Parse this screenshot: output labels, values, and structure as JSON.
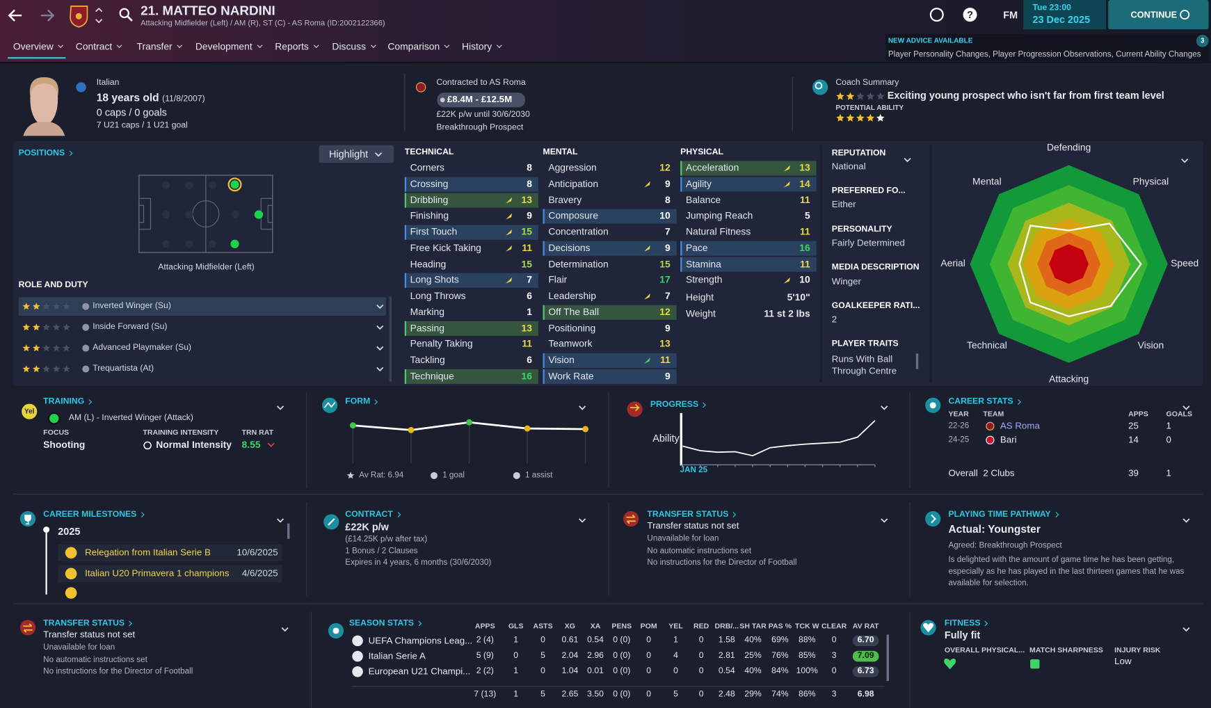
{
  "header": {
    "title": "21. MATTEO NARDINI",
    "subtitle": "Attacking Midfielder (Left) / AM (R), ST (C) - AS Roma (ID:2002122366)",
    "logo": "FM",
    "time": "Tue 23:00",
    "date": "23 Dec 2025",
    "continue": "CONTINUE",
    "advice_title": "NEW ADVICE AVAILABLE",
    "advice_text": "Player Personality Changes, Player Progression Observations, Current Ability Changes",
    "advice_count": 3
  },
  "nav": [
    "Overview",
    "Contract",
    "Transfer",
    "Development",
    "Reports",
    "Discuss",
    "Comparison",
    "History"
  ],
  "profile": {
    "nationality": "Italian",
    "age": "18 years old",
    "dob": "(11/8/2007)",
    "caps": "0 caps / 0 goals",
    "u21": "7 U21 caps / 1 U21 goal",
    "contract": "Contracted to AS Roma",
    "value": "£8.4M - £12.5M",
    "wage": "£22K p/w until 30/6/2030",
    "status": "Breakthrough Prospect",
    "coach_title": "Coach Summary",
    "coach_text": "Exciting young prospect who isn't far from first team level",
    "potential": "POTENTIAL ABILITY"
  },
  "positions": {
    "title": "POSITIONS",
    "highlight": "Highlight",
    "label": "Attacking Midfielder (Left)",
    "role_title": "ROLE AND DUTY",
    "roles": [
      "Inverted Winger (Su)",
      "Inside Forward (Su)",
      "Advanced Playmaker (Su)",
      "Trequartista (At)"
    ]
  },
  "attributes": [
    {
      "title": "TECHNICAL",
      "names": [
        "Corners",
        "Crossing",
        "Dribbling",
        "Finishing",
        "First Touch",
        "Free Kick Taking",
        "Heading",
        "Long Shots",
        "Long Throws",
        "Marking",
        "Passing",
        "Penalty Taking",
        "Tackling",
        "Technique"
      ],
      "values": [
        8,
        8,
        13,
        9,
        15,
        11,
        15,
        7,
        6,
        1,
        13,
        11,
        6,
        16
      ]
    },
    {
      "title": "MENTAL",
      "names": [
        "Aggression",
        "Anticipation",
        "Bravery",
        "Composure",
        "Concentration",
        "Decisions",
        "Determination",
        "Flair",
        "Leadership",
        "Off The Ball",
        "Positioning",
        "Teamwork",
        "Vision",
        "Work Rate"
      ],
      "values": [
        12,
        9,
        8,
        10,
        7,
        9,
        15,
        17,
        7,
        12,
        9,
        13,
        11,
        9
      ]
    },
    {
      "title": "PHYSICAL",
      "names": [
        "Acceleration",
        "Agility",
        "Balance",
        "Jumping Reach",
        "Natural Fitness",
        "Pace",
        "Stamina",
        "Strength"
      ],
      "values": [
        13,
        14,
        11,
        5,
        11,
        16,
        11,
        10
      ],
      "extra_names": [
        "Height",
        "Weight"
      ],
      "extra_values": [
        "5'10\"",
        "11 st 2 lbs"
      ]
    }
  ],
  "info": [
    {
      "label": "REPUTATION",
      "value": "National"
    },
    {
      "label": "PREFERRED FO...",
      "value": "Either"
    },
    {
      "label": "PERSONALITY",
      "value": "Fairly Determined"
    },
    {
      "label": "MEDIA DESCRIPTION",
      "value": "Winger"
    },
    {
      "label": "GOALKEEPER RATI...",
      "value": 2
    },
    {
      "label": "PLAYER TRAITS",
      "value": "Runs With Ball Through Centre"
    }
  ],
  "radar": {
    "axes": [
      "Defending",
      "Physical",
      "Speed",
      "Vision",
      "Attacking",
      "Technical",
      "Aerial",
      "Mental"
    ],
    "values": [
      0.34,
      0.58,
      0.73,
      0.6,
      0.53,
      0.55,
      0.5,
      0.55
    ],
    "rlim": [
      0,
      1
    ]
  },
  "training": {
    "badge": "Yel",
    "title": "TRAINING",
    "role": "AM (L) - Inverted Winger (Attack)",
    "focus_label": "FOCUS",
    "focus": "Shooting",
    "intensity_label": "TRAINING INTENSITY",
    "intensity": "Normal Intensity",
    "rating_label": "TRN RAT",
    "rating": 8.55
  },
  "form": {
    "title": "FORM",
    "values": [
      7.1,
      6.95,
      7.2,
      7.0,
      6.98
    ],
    "point_colors": [
      "#3ec94a",
      "#e6b81e",
      "#3ec94a",
      "#e6b81e",
      "#e6b81e"
    ],
    "ylim": [
      6.5,
      7.5
    ],
    "average": "Av Rat: 6.94",
    "goals": "1 goal",
    "assists": "1 assist"
  },
  "progress": {
    "title": "PROGRESS",
    "ylabel": "Ability",
    "xlabel": "JAN 25",
    "values": [
      34,
      25,
      22,
      23,
      15,
      31,
      35,
      38,
      40,
      42,
      52,
      85
    ],
    "ylim": [
      0,
      100
    ]
  },
  "career": {
    "title": "CAREER STATS",
    "headers": [
      "YEAR",
      "TEAM",
      "APPS",
      "GOALS"
    ],
    "rows": [
      [
        "22-26",
        "AS Roma",
        25,
        1
      ],
      [
        "24-25",
        "Bari",
        14,
        0
      ]
    ],
    "total_label": "Overall",
    "total_clubs": "2 Clubs",
    "total_apps": 39,
    "total_goals": 1
  },
  "milestones": {
    "title": "CAREER MILESTONES",
    "year": "2025",
    "items": [
      {
        "text": "Relegation from Italian Serie B",
        "date": "10/6/2025"
      },
      {
        "text": "Italian U20 Primavera 1 champions",
        "date": "4/6/2025"
      }
    ]
  },
  "contract": {
    "title": "CONTRACT",
    "wage": "£22K p/w",
    "lines": [
      "(£14.25K p/w after tax)",
      "1 Bonus / 2 Clauses",
      "Expires in 4 years, 6 months (30/6/2030)"
    ]
  },
  "transfer_status": {
    "title": "TRANSFER STATUS",
    "status": "Transfer status not set",
    "lines": [
      "Unavailable for loan",
      "No automatic instructions set",
      "No instructions for the Director of Football"
    ]
  },
  "transfer_status_2": {
    "title": "TRANSFER STATUS",
    "status": "Transfer status not set",
    "lines": [
      "Unavailable for loan",
      "No automatic instructions set",
      "No instructions for the Director of Football"
    ]
  },
  "pathway": {
    "title": "PLAYING TIME PATHWAY",
    "actual": "Actual: Youngster",
    "agreed": "Agreed: Breakthrough Prospect",
    "text": "Is delighted with the amount of game time he has been getting, especially as he has played in the last thirteen games that he was available for selection."
  },
  "season_stats": {
    "title": "SEASON STATS",
    "headers": [
      "APPS",
      "GLS",
      "ASTS",
      "XG",
      "XA",
      "PENS",
      "POM",
      "YEL",
      "RED",
      "DRB/...",
      "SH TAR",
      "PAS %",
      "TCK W",
      "CLEAR",
      "AV RAT"
    ],
    "rows": [
      {
        "competition": "UEFA Champions Leag...",
        "cells": [
          "2 (4)",
          "1",
          "0",
          "0.61",
          "0.54",
          "0 (0)",
          "0",
          "1",
          "0",
          "1.58",
          "40%",
          "69%",
          "88%",
          "0",
          "6.70"
        ]
      },
      {
        "competition": "Italian Serie A",
        "cells": [
          "5 (9)",
          "0",
          "5",
          "2.04",
          "2.96",
          "0 (0)",
          "0",
          "4",
          "0",
          "2.81",
          "25%",
          "76%",
          "85%",
          "3",
          "7.09"
        ]
      },
      {
        "competition": "European U21 Champi...",
        "cells": [
          "2 (2)",
          "1",
          "0",
          "1.04",
          "0.01",
          "0 (0)",
          "0",
          "0",
          "0",
          "0.54",
          "40%",
          "84%",
          "100%",
          "0",
          "6.73"
        ]
      }
    ],
    "total": [
      "7 (13)",
      "1",
      "5",
      "2.65",
      "3.50",
      "0 (0)",
      "0",
      "5",
      "0",
      "2.48",
      "29%",
      "74%",
      "86%",
      "3",
      "6.98"
    ]
  },
  "fitness": {
    "title": "FITNESS",
    "status": "Fully fit",
    "labels": [
      "OVERALL PHYSICAL...",
      "MATCH SHARPNESS",
      "INJURY RISK"
    ],
    "injury_risk": "Low"
  }
}
